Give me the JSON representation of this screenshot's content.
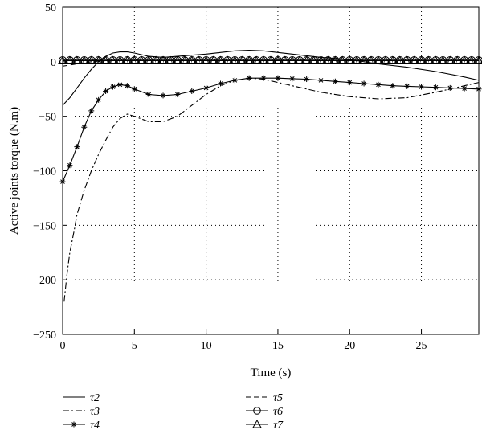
{
  "chart_data": {
    "type": "line",
    "xlabel": "Time (s)",
    "ylabel": "Active joints torque (N.m)",
    "xlim": [
      0,
      29
    ],
    "ylim": [
      -250,
      50
    ],
    "xticks": [
      0,
      5,
      10,
      15,
      20,
      25
    ],
    "yticks": [
      50,
      0,
      -50,
      -100,
      -150,
      -200,
      -250
    ],
    "grid": true,
    "legend_position": "bottom",
    "series": [
      {
        "name": "τ2",
        "line_style": "solid",
        "marker": "none",
        "x": [
          0,
          0.5,
          1,
          1.5,
          2,
          2.5,
          3,
          3.5,
          4,
          4.5,
          5,
          6,
          7,
          8,
          10,
          12,
          13,
          14,
          16,
          18,
          20,
          22,
          24,
          26,
          28,
          29
        ],
        "y": [
          -40,
          -33,
          -24,
          -15,
          -7,
          0,
          5,
          8,
          9,
          9,
          8,
          5,
          4,
          5,
          7,
          10,
          10.5,
          10,
          7,
          4,
          2,
          -2,
          -5,
          -9,
          -14,
          -17
        ]
      },
      {
        "name": "τ3",
        "line_style": "dashdot",
        "marker": "none",
        "x": [
          0.1,
          0.3,
          0.5,
          0.8,
          1,
          1.5,
          2,
          2.5,
          3,
          3.5,
          4,
          4.5,
          5,
          6,
          7,
          8,
          9,
          10,
          11,
          12,
          13,
          14,
          16,
          18,
          20,
          22,
          24,
          26,
          28,
          29
        ],
        "y": [
          -220,
          -195,
          -175,
          -155,
          -140,
          -118,
          -100,
          -85,
          -72,
          -60,
          -52,
          -48,
          -50,
          -55,
          -55,
          -50,
          -40,
          -30,
          -22,
          -17,
          -15,
          -16,
          -22,
          -28,
          -32,
          -34,
          -33,
          -28,
          -22,
          -19
        ]
      },
      {
        "name": "τ4",
        "line_style": "solid",
        "marker": "asterisk",
        "x": [
          0,
          0.5,
          1,
          1.5,
          2,
          2.5,
          3,
          3.5,
          4,
          4.5,
          5,
          6,
          7,
          8,
          9,
          10,
          11,
          12,
          13,
          14,
          15,
          16,
          17,
          18,
          19,
          20,
          21,
          22,
          23,
          24,
          25,
          26,
          27,
          28,
          29
        ],
        "y": [
          -110,
          -95,
          -78,
          -60,
          -45,
          -35,
          -27,
          -23,
          -21,
          -22,
          -25,
          -30,
          -31,
          -30,
          -27,
          -24,
          -20,
          -17,
          -15,
          -15,
          -15,
          -15.5,
          -16,
          -17,
          -18,
          -19,
          -20,
          -21,
          -22,
          -22.5,
          -23,
          -23.5,
          -24,
          -24.5,
          -25
        ]
      },
      {
        "name": "τ5",
        "line_style": "dashed",
        "marker": "none",
        "x": [
          0,
          1,
          2,
          3,
          4,
          5,
          29
        ],
        "y": [
          -4,
          -2,
          0,
          1,
          1,
          1,
          1
        ]
      },
      {
        "name": "τ6",
        "line_style": "solid",
        "marker": "circle",
        "x": [
          0,
          29
        ],
        "y": [
          1.5,
          1.5
        ]
      },
      {
        "name": "τ7",
        "line_style": "solid",
        "marker": "triangle",
        "x": [
          0,
          29
        ],
        "y": [
          1,
          1
        ]
      }
    ]
  }
}
